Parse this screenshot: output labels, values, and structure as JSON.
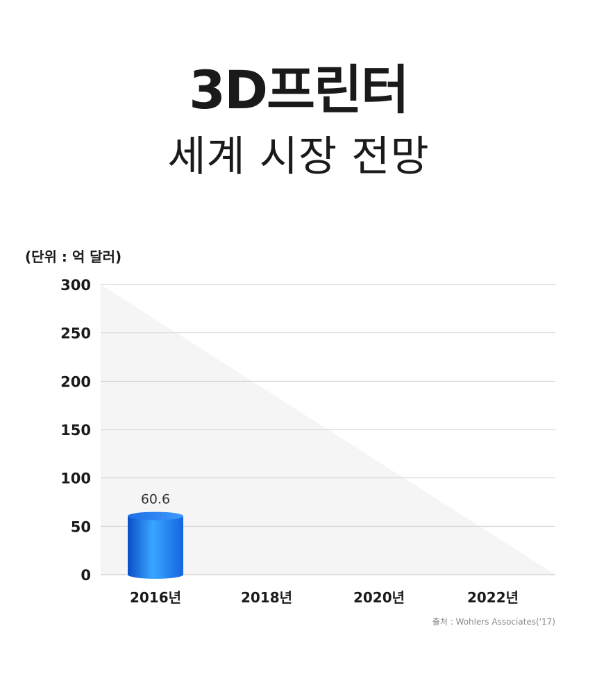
{
  "header": {
    "title": "3D프린터",
    "subtitle": "세계 시장 전망"
  },
  "unit_label": "(단위 : 억 달러)",
  "source": "출처 : Wohlers Associates('17)",
  "colors": {
    "bar_main": "#1E78F0",
    "bar_light": "#4FB8FF",
    "bar_dark": "#0A4FC8",
    "background_triangle": "#F5F5F5",
    "gridline": "#CFCFCF"
  },
  "chart_data": {
    "type": "bar",
    "categories": [
      "2016년",
      "2018년",
      "2020년",
      "2022년"
    ],
    "values": [
      60.6,
      null,
      null,
      null
    ],
    "value_labels": [
      "60.6",
      "",
      "",
      ""
    ],
    "yticks": [
      "0",
      "50",
      "100",
      "150",
      "200",
      "250",
      "300"
    ],
    "ylim": [
      0,
      300
    ],
    "grid": true,
    "legend": "none"
  }
}
